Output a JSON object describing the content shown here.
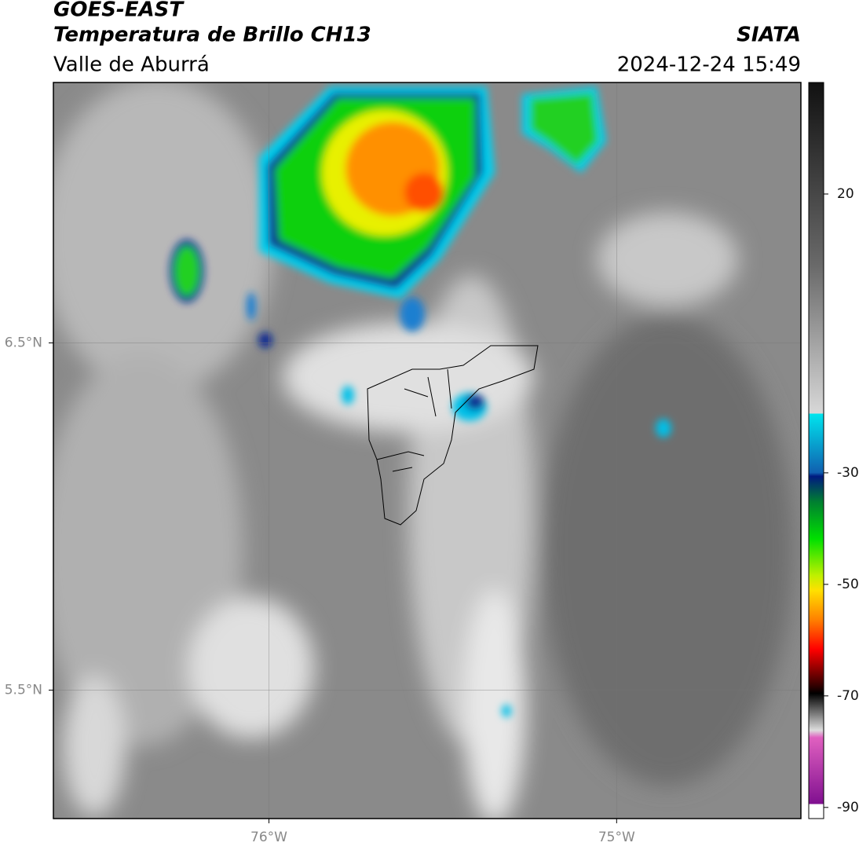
{
  "header": {
    "satellite": "GOES-EAST",
    "product": "Temperatura de Brillo CH13",
    "region": "Valle de Aburrá",
    "source": "SIATA",
    "datetime": "2024-12-24 15:49"
  },
  "map": {
    "xlim": [
      -76.62,
      -74.47
    ],
    "ylim": [
      5.13,
      7.25
    ],
    "xticks": [
      {
        "value": -76,
        "label": "76°W"
      },
      {
        "value": -75,
        "label": "75°W"
      }
    ],
    "yticks": [
      {
        "value": 6.5,
        "label": "6.5°N"
      },
      {
        "value": 5.5,
        "label": "5.5°N"
      }
    ],
    "grid": true
  },
  "colorbar": {
    "lim": [
      -92,
      40
    ],
    "ticks": [
      20,
      -30,
      -50,
      -70,
      -90
    ]
  }
}
